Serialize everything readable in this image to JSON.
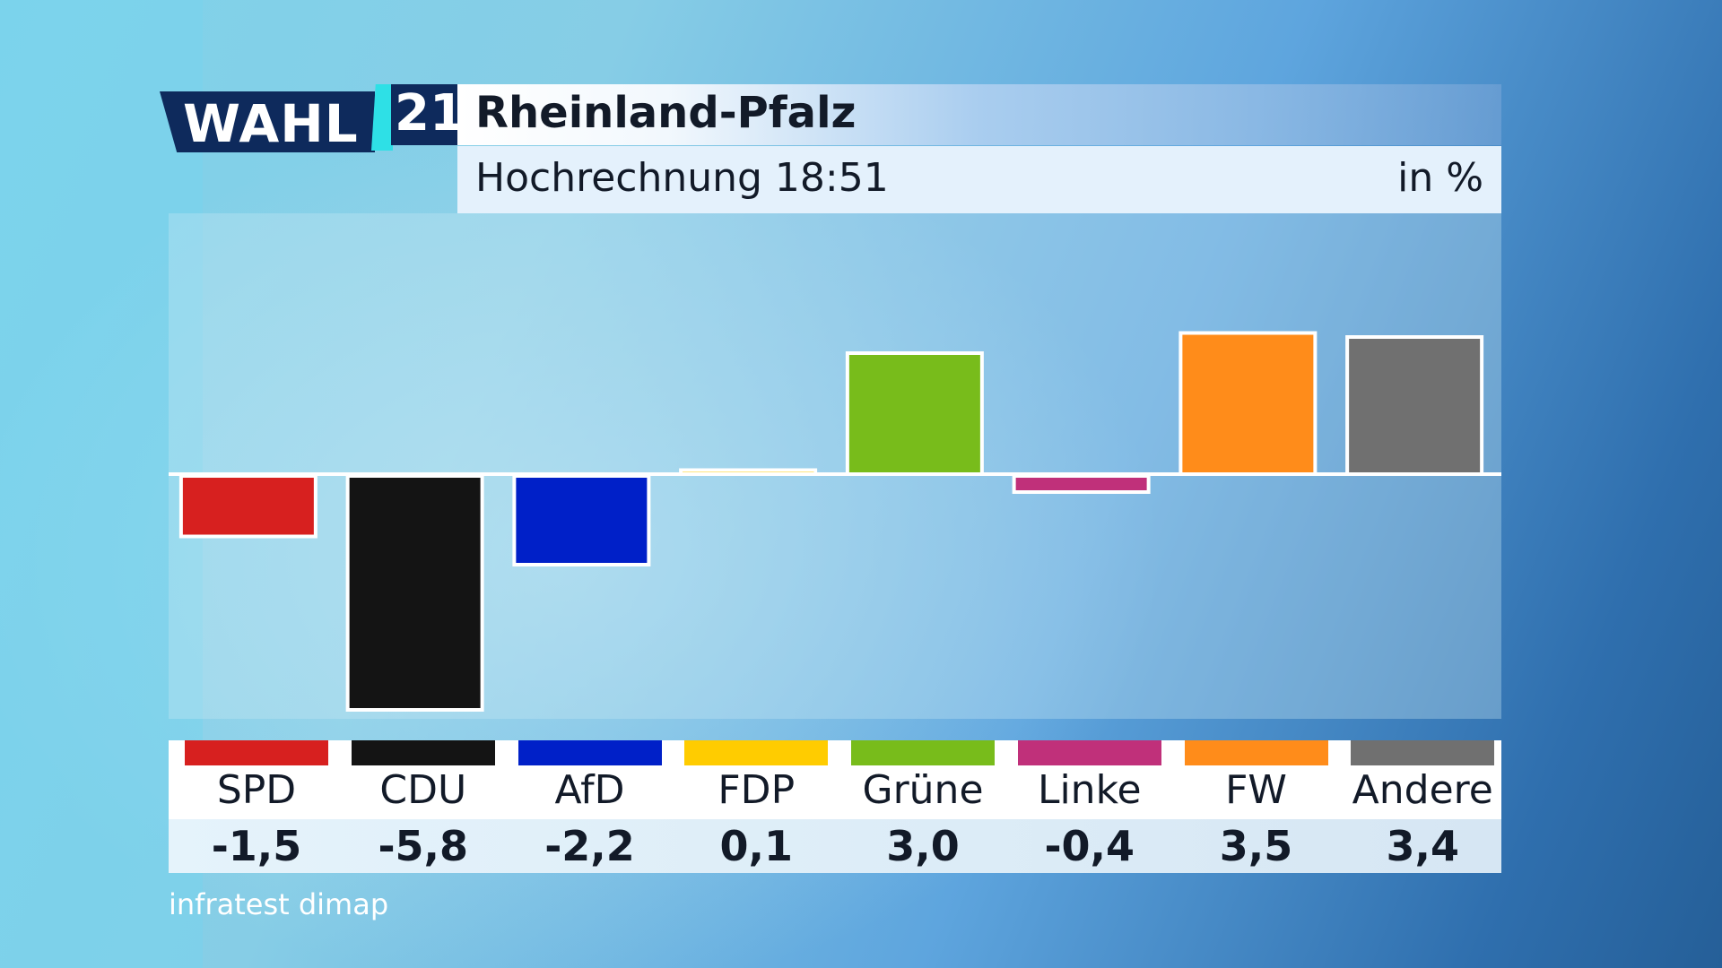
{
  "logo": {
    "wahl": "WAHL",
    "year": "21"
  },
  "header": {
    "title": "Rheinland-Pfalz",
    "subtitle": "Hochrechnung 18:51",
    "unit": "in %"
  },
  "source": "infratest dimap",
  "chart_data": {
    "type": "bar",
    "title": "Rheinland-Pfalz",
    "subtitle": "Hochrechnung 18:51",
    "ylabel": "in %",
    "categories": [
      "SPD",
      "CDU",
      "AfD",
      "FDP",
      "Grüne",
      "Linke",
      "FW",
      "Andere"
    ],
    "values": [
      -1.5,
      -5.8,
      -2.2,
      0.1,
      3.0,
      -0.4,
      3.5,
      3.4
    ],
    "value_labels": [
      "-1,5",
      "-5,8",
      "-2,2",
      "0,1",
      "3,0",
      "-0,4",
      "3,5",
      "3,4"
    ],
    "colors": [
      "#d7201f",
      "#141414",
      "#0020c8",
      "#ffcc00",
      "#78bc1b",
      "#c0307a",
      "#ff8c1a",
      "#707070"
    ],
    "ylim": [
      -6.0,
      6.0
    ],
    "grid": false,
    "legend": "none"
  },
  "colors": {
    "logo_background": "#0e2a5c",
    "logo_accent": "#2ee0e6",
    "text": "#121a28"
  }
}
